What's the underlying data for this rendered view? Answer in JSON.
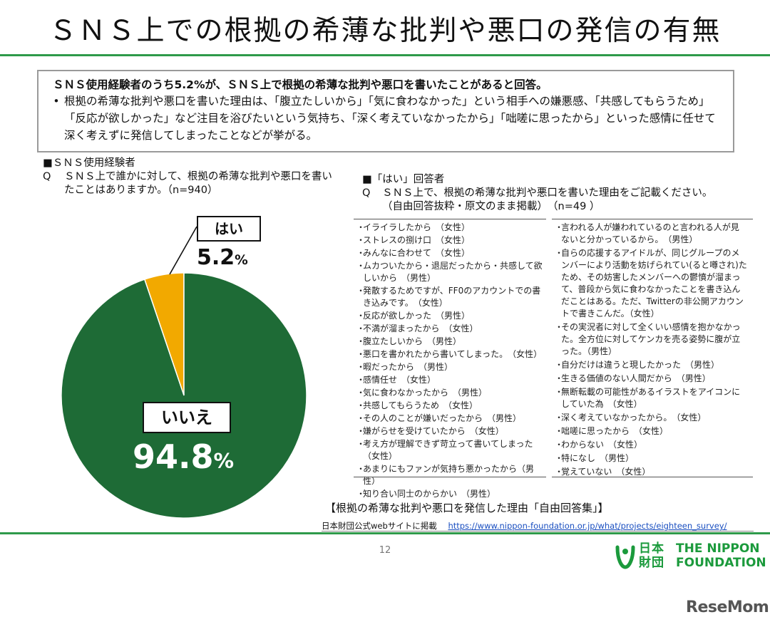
{
  "title": "ＳＮＳ上での根拠の希薄な批判や悪口の発信の有無",
  "summary": {
    "headline": "ＳＮＳ使用経験者のうち5.2%が、ＳＮＳ上で根拠の希薄な批判や悪口を書いたことがあると回答。",
    "bullet": "根拠の希薄な批判や悪口を書いた理由は、「腹立たしいから」「気に食わなかった」という相手への嫌悪感、「共感してもらうため」「反応が欲しかった」など注目を浴びたいという気持ち、「深く考えていなかったから」「咄嗟に思ったから」といった感情に任せて深く考えずに発信してしまったことなどが挙がる。"
  },
  "left_question": {
    "group": "■ＳＮＳ使用経験者",
    "q": "Q",
    "text": "ＳＮＳ上で誰かに対して、根拠の希薄な批判や悪口を書いたことはありますか。（n=940）"
  },
  "chart_data": {
    "type": "pie",
    "slices": [
      {
        "label": "はい",
        "value": 5.2,
        "color": "#f2a900"
      },
      {
        "label": "いいえ",
        "value": 94.8,
        "color": "#1e6b36"
      }
    ],
    "value_labels": [
      "5.2",
      "94.8"
    ],
    "unit": "%"
  },
  "right_question": {
    "group": "■「はい」回答者",
    "q": "Q",
    "text": "ＳＮＳ上で、根拠の希薄な批判や悪口を書いた理由をご記載ください。",
    "subtext": "（自由回答抜粋・原文のまま掲載）　（n=49 ）"
  },
  "answers_left": [
    "イライラしたから　（女性）",
    "ストレスの捌け口　（女性）",
    "みんなに合わせて　（女性）",
    "ムカついたから・退屈だったから・共感して欲しいから　（男性）",
    "発散するためですが、FF0のアカウントでの書き込みです。　（女性）",
    "反応が欲しかった　（男性）",
    "不満が溜まったから　（女性）",
    "腹立たしいから　（男性）",
    "悪口を書かれたから書いてしまった。　（女性）",
    "暇だったから　（男性）",
    "感情任せ　（女性）",
    "気に食わなかったから　（男性）",
    "共感してもらうため　（女性）",
    "その人のことが嫌いだったから　（男性）",
    "嫌がらせを受けていたから　（女性）",
    "考え方が理解できず苛立って書いてしまった　（女性）",
    "あまりにもファンが気持ち悪かったから（男性）",
    "知り合い同士のからかい　（男性）"
  ],
  "answers_right": [
    "言われる人が嫌われているのと言われる人が見ないと分かっているから。　（男性）",
    "自らの応援するアイドルが、同じグループのメンバーにより活動を妨げられてい(ると噂され)たため、その妨害したメンバーへの鬱憤が溜まって、普段から気に食わなかったことを書き込んだことはある。ただ、Twitterの非公開アカウントで書きこんだ。（女性）",
    "その実況者に対して全くいい感情を抱かなかった。全方位に対してケンカを売る姿勢に腹が立った。（男性）",
    "自分だけは違うと現したかった　（男性）",
    "生きる価値のない人間だから　（男性）",
    "無断転載の可能性があるイラストをアイコンにしていた為　（女性）",
    "深く考えていなかったから。　（女性）",
    "咄嗟に思ったから　（女性）",
    "わからない　（女性）",
    "特になし　（男性）",
    "覚えていない　（女性）"
  ],
  "bullet_mark": "・",
  "caption": "【根拠の希薄な批判や悪口を発信した理由「自由回答集」】",
  "source": {
    "label": "日本財団公式webサイトに掲載",
    "url": "https://www.nippon-foundation.or.jp/what/projects/eighteen_survey/"
  },
  "page_number": "12",
  "logo": {
    "kanji_top": "日本",
    "kanji_bottom": "財団",
    "en_top": "THE NIPPON",
    "en_bottom": "FOUNDATION",
    "color": "#1b9a3c"
  },
  "watermark": "ReseMom",
  "colors": {
    "accent_green": "#2e9a4a",
    "pie_yes": "#f2a900",
    "pie_no": "#1e6b36"
  }
}
